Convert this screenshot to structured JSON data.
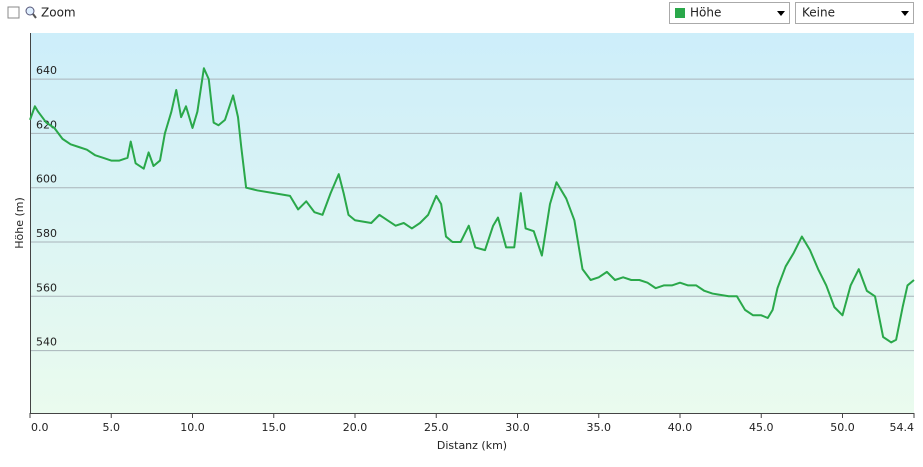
{
  "toolbar": {
    "zoom": "Zoom",
    "series_select": "Höhe",
    "compare_select": "Keine"
  },
  "chart_data": {
    "type": "line",
    "x_label": "Distanz  (km)",
    "y_label": "Höhe (m)",
    "x": [
      0,
      0.3,
      0.5,
      1.0,
      1.5,
      2.0,
      2.5,
      3.0,
      3.5,
      4.0,
      4.5,
      5.0,
      5.5,
      6.0,
      6.2,
      6.5,
      7.0,
      7.3,
      7.6,
      8.0,
      8.3,
      8.7,
      9.0,
      9.3,
      9.6,
      10.0,
      10.3,
      10.7,
      11.0,
      11.3,
      11.6,
      12.0,
      12.5,
      12.8,
      13.0,
      13.3,
      14.0,
      15.0,
      16.0,
      16.5,
      17.0,
      17.5,
      18.0,
      18.5,
      19.0,
      19.3,
      19.6,
      20.0,
      21.0,
      21.5,
      22.0,
      22.5,
      23.0,
      23.5,
      24.0,
      24.5,
      25.0,
      25.3,
      25.6,
      26.0,
      26.5,
      27.0,
      27.4,
      28.0,
      28.5,
      28.8,
      29.3,
      29.8,
      30.0,
      30.2,
      30.5,
      31.0,
      31.5,
      32.0,
      32.4,
      33.0,
      33.5,
      34.0,
      34.5,
      35.0,
      35.5,
      36.0,
      36.5,
      37.0,
      37.5,
      38.0,
      38.5,
      39.0,
      39.5,
      40.0,
      40.5,
      41.0,
      41.5,
      42.0,
      43.0,
      43.5,
      44.0,
      44.5,
      45.0,
      45.4,
      45.7,
      46.0,
      46.5,
      47.0,
      47.5,
      48.0,
      48.5,
      49.0,
      49.5,
      50.0,
      50.5,
      51.0,
      51.5,
      52.0,
      52.5,
      53.0,
      53.3,
      53.7,
      54.0,
      54.4
    ],
    "series": [
      {
        "name": "Höhe",
        "color": "#2aa84a",
        "values": [
          625,
          630,
          628,
          624,
          622,
          618,
          616,
          615,
          614,
          612,
          611,
          610,
          610,
          611,
          617,
          609,
          607,
          613,
          608,
          610,
          620,
          628,
          636,
          626,
          630,
          622,
          628,
          644,
          640,
          624,
          623,
          625,
          634,
          626,
          615,
          600,
          599,
          598,
          597,
          592,
          595,
          591,
          590,
          598,
          605,
          598,
          590,
          588,
          587,
          590,
          588,
          586,
          587,
          585,
          587,
          590,
          597,
          594,
          582,
          580,
          580,
          586,
          578,
          577,
          586,
          589,
          578,
          578,
          588,
          598,
          585,
          584,
          575,
          594,
          602,
          596,
          588,
          570,
          566,
          567,
          569,
          566,
          567,
          566,
          566,
          565,
          563,
          564,
          564,
          565,
          564,
          564,
          562,
          561,
          560,
          560,
          555,
          553,
          553,
          552,
          555,
          563,
          571,
          576,
          582,
          577,
          570,
          564,
          556,
          553,
          564,
          570,
          562,
          560,
          545,
          543,
          544,
          556,
          564,
          566
        ]
      }
    ],
    "xlim": [
      0,
      54.4
    ],
    "xticks": [
      {
        "value": 0,
        "label": "0.0"
      },
      {
        "value": 5,
        "label": "5.0"
      },
      {
        "value": 10,
        "label": "10.0"
      },
      {
        "value": 15,
        "label": "15.0"
      },
      {
        "value": 20,
        "label": "20.0"
      },
      {
        "value": 25,
        "label": "25.0"
      },
      {
        "value": 30,
        "label": "30.0"
      },
      {
        "value": 35,
        "label": "35.0"
      },
      {
        "value": 40,
        "label": "40.0"
      },
      {
        "value": 45,
        "label": "45.0"
      },
      {
        "value": 50,
        "label": "50.0"
      },
      54.4
    ],
    "ylim": [
      517,
      657
    ],
    "yticks": [
      540,
      560,
      580,
      600,
      620,
      640
    ],
    "grid": true
  }
}
